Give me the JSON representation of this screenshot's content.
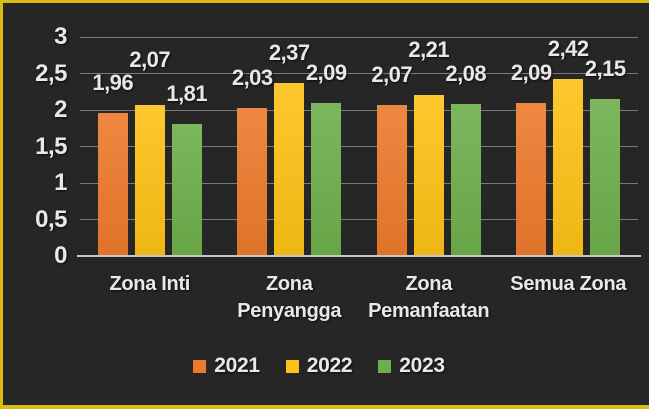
{
  "chart_data": {
    "type": "bar",
    "title": "",
    "categories": [
      "Zona Inti",
      "Zona Penyangga",
      "Zona Pemanfaatan",
      "Semua Zona"
    ],
    "series": [
      {
        "name": "2021",
        "color": "#ED7A2C",
        "values": [
          1.96,
          2.03,
          2.07,
          2.09
        ],
        "labels": [
          "1,96",
          "2,03",
          "2,07",
          "2,09"
        ]
      },
      {
        "name": "2022",
        "color": "#FDC216",
        "values": [
          2.07,
          2.37,
          2.21,
          2.42
        ],
        "labels": [
          "2,07",
          "2,37",
          "2,21",
          "2,42"
        ]
      },
      {
        "name": "2023",
        "color": "#6DAF4B",
        "values": [
          1.81,
          2.09,
          2.08,
          2.15
        ],
        "labels": [
          "1,81",
          "2,09",
          "2,08",
          "2,15"
        ]
      }
    ],
    "y_axis": {
      "min": 0,
      "max": 3,
      "step": 0.5,
      "tick_labels": [
        "0",
        "0,5",
        "1",
        "1,5",
        "2",
        "2,5",
        "3"
      ]
    },
    "grid": true,
    "legend_position": "bottom",
    "decimal_separator": ","
  },
  "style_colors": {
    "background": "#262626",
    "frame_border": "#D7BA12",
    "gridline": "#7A7A7A",
    "axis_line": "#C6C6C6",
    "text": "#EAE8E4"
  }
}
